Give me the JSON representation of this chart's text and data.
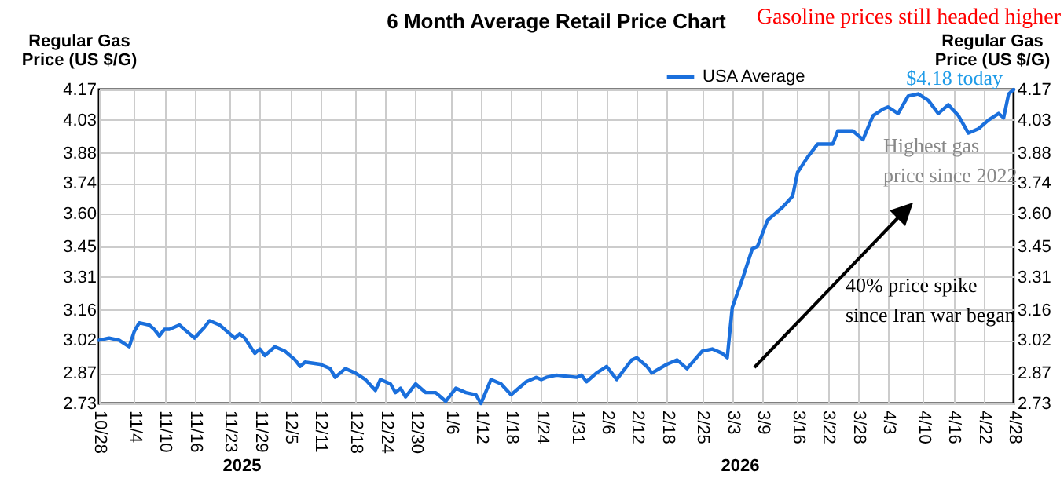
{
  "chart_data": {
    "type": "line",
    "title": "6 Month Average Retail Price Chart",
    "ylabel": "Regular Gas Price (US $/G)",
    "y2label": "Regular Gas Price (US $/G)",
    "annotations": [
      "Gasoline prices still headed higher",
      "$4.18 today",
      "Highest gas price since 2022",
      "40% price spike since Iran war began",
      "2025",
      "2026"
    ],
    "xlim": [
      "2025-10-28",
      "2026-04-28"
    ],
    "xticks": [
      {
        "value": "2025-10-28",
        "label": "10/28"
      },
      {
        "value": "2025-11-04",
        "label": "11/4"
      },
      {
        "value": "2025-11-10",
        "label": "11/10"
      },
      {
        "value": "2025-11-16",
        "label": "11/16"
      },
      {
        "value": "2025-11-23",
        "label": "11/23"
      },
      {
        "value": "2025-11-29",
        "label": "11/29"
      },
      {
        "value": "2025-12-05",
        "label": "12/5"
      },
      {
        "value": "2025-12-11",
        "label": "12/11"
      },
      {
        "value": "2025-12-18",
        "label": "12/18"
      },
      {
        "value": "2025-12-24",
        "label": "12/24"
      },
      {
        "value": "2025-12-30",
        "label": "12/30"
      },
      {
        "value": "2026-01-06",
        "label": "1/6"
      },
      {
        "value": "2026-01-12",
        "label": "1/12"
      },
      {
        "value": "2026-01-18",
        "label": "1/18"
      },
      {
        "value": "2026-01-24",
        "label": "1/24"
      },
      {
        "value": "2026-01-31",
        "label": "1/31"
      },
      {
        "value": "2026-02-06",
        "label": "2/6"
      },
      {
        "value": "2026-02-12",
        "label": "2/12"
      },
      {
        "value": "2026-02-18",
        "label": "2/18"
      },
      {
        "value": "2026-02-25",
        "label": "2/25"
      },
      {
        "value": "2026-03-03",
        "label": "3/3"
      },
      {
        "value": "2026-03-09",
        "label": "3/9"
      },
      {
        "value": "2026-03-16",
        "label": "3/16"
      },
      {
        "value": "2026-03-22",
        "label": "3/22"
      },
      {
        "value": "2026-03-28",
        "label": "3/28"
      },
      {
        "value": "2026-04-03",
        "label": "4/3"
      },
      {
        "value": "2026-04-10",
        "label": "4/10"
      },
      {
        "value": "2026-04-16",
        "label": "4/16"
      },
      {
        "value": "2026-04-22",
        "label": "4/22"
      },
      {
        "value": "2026-04-28",
        "label": "4/28"
      }
    ],
    "ylim": [
      2.73,
      4.17
    ],
    "yticks": [
      2.73,
      2.87,
      3.02,
      3.16,
      3.31,
      3.45,
      {
        "value": 3.6,
        "label": "3.60"
      },
      3.74,
      3.88,
      4.03,
      4.17
    ],
    "y2lim": [
      2.73,
      4.17
    ],
    "y2ticks": [
      2.73,
      2.87,
      3.02,
      3.16,
      3.31,
      3.45,
      {
        "value": 3.6,
        "label": "3.60"
      },
      3.74,
      3.88,
      4.03,
      4.17
    ],
    "grid": true,
    "legend": "top",
    "marker": "none",
    "line_style": "solid",
    "series": [
      {
        "name": "USA Average",
        "color": "#1a6fdc",
        "x": [
          "2025-10-28",
          "2025-10-30",
          "2025-11-01",
          "2025-11-03",
          "2025-11-04",
          "2025-11-05",
          "2025-11-07",
          "2025-11-08",
          "2025-11-09",
          "2025-11-10",
          "2025-11-11",
          "2025-11-13",
          "2025-11-14",
          "2025-11-16",
          "2025-11-18",
          "2025-11-19",
          "2025-11-21",
          "2025-11-24",
          "2025-11-25",
          "2025-11-26",
          "2025-11-28",
          "2025-11-29",
          "2025-11-30",
          "2025-12-02",
          "2025-12-04",
          "2025-12-06",
          "2025-12-07",
          "2025-12-08",
          "2025-12-11",
          "2025-12-13",
          "2025-12-14",
          "2025-12-16",
          "2025-12-18",
          "2025-12-20",
          "2025-12-22",
          "2025-12-23",
          "2025-12-25",
          "2025-12-26",
          "2025-12-27",
          "2025-12-28",
          "2025-12-30",
          "2026-01-01",
          "2026-01-03",
          "2026-01-05",
          "2026-01-07",
          "2026-01-09",
          "2026-01-11",
          "2026-01-12",
          "2026-01-14",
          "2026-01-16",
          "2026-01-18",
          "2026-01-21",
          "2026-01-23",
          "2026-01-24",
          "2026-01-25",
          "2026-01-27",
          "2026-01-31",
          "2026-02-01",
          "2026-02-02",
          "2026-02-04",
          "2026-02-06",
          "2026-02-08",
          "2026-02-11",
          "2026-02-12",
          "2026-02-14",
          "2026-02-15",
          "2026-02-18",
          "2026-02-20",
          "2026-02-22",
          "2026-02-25",
          "2026-02-27",
          "2026-03-01",
          "2026-03-02",
          "2026-03-03",
          "2026-03-05",
          "2026-03-07",
          "2026-03-08",
          "2026-03-10",
          "2026-03-13",
          "2026-03-15",
          "2026-03-16",
          "2026-03-18",
          "2026-03-20",
          "2026-03-23",
          "2026-03-24",
          "2026-03-27",
          "2026-03-29",
          "2026-03-31",
          "2026-04-02",
          "2026-04-03",
          "2026-04-05",
          "2026-04-07",
          "2026-04-09",
          "2026-04-11",
          "2026-04-13",
          "2026-04-15",
          "2026-04-17",
          "2026-04-19",
          "2026-04-21",
          "2026-04-23",
          "2026-04-25",
          "2026-04-26",
          "2026-04-27",
          "2026-04-28"
        ],
        "values": [
          3.02,
          3.03,
          3.02,
          2.99,
          3.06,
          3.1,
          3.09,
          3.07,
          3.04,
          3.07,
          3.07,
          3.09,
          3.07,
          3.03,
          3.08,
          3.11,
          3.09,
          3.03,
          3.05,
          3.03,
          2.96,
          2.98,
          2.95,
          2.99,
          2.97,
          2.93,
          2.9,
          2.92,
          2.91,
          2.89,
          2.85,
          2.89,
          2.87,
          2.84,
          2.79,
          2.84,
          2.82,
          2.78,
          2.8,
          2.76,
          2.82,
          2.78,
          2.78,
          2.74,
          2.8,
          2.78,
          2.77,
          2.73,
          2.84,
          2.82,
          2.77,
          2.83,
          2.85,
          2.84,
          2.85,
          2.86,
          2.85,
          2.86,
          2.83,
          2.87,
          2.9,
          2.84,
          2.93,
          2.94,
          2.9,
          2.87,
          2.91,
          2.93,
          2.89,
          2.97,
          2.98,
          2.96,
          2.94,
          3.17,
          3.3,
          3.44,
          3.45,
          3.57,
          3.63,
          3.68,
          3.79,
          3.86,
          3.92,
          3.92,
          3.98,
          3.98,
          3.94,
          4.05,
          4.08,
          4.09,
          4.06,
          4.14,
          4.15,
          4.12,
          4.06,
          4.1,
          4.05,
          3.97,
          3.99,
          4.03,
          4.06,
          4.04,
          4.15,
          4.17
        ]
      }
    ]
  }
}
